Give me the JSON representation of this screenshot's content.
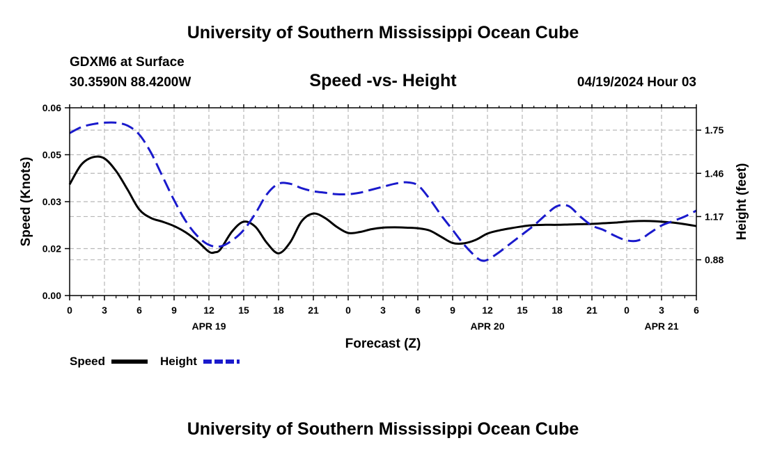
{
  "page": {
    "title": "University of Southern Mississippi Ocean Cube",
    "footer_title": "University of Southern Mississippi Ocean Cube"
  },
  "header": {
    "station": "GDXM6 at Surface",
    "location": "30.3590N  88.4200W",
    "datetime": "04/19/2024 Hour 03"
  },
  "colors": {
    "speed": "#000000",
    "height": "#1a1acc",
    "grid": "#b8b8b8"
  },
  "chart_data": {
    "type": "line",
    "title": "Speed -vs- Height",
    "xlabel": "Forecast (Z)",
    "ylabel": "Speed (Knots)",
    "y2label": "Height (feet)",
    "xlim": [
      0,
      54
    ],
    "ylim": [
      0,
      0.06
    ],
    "y2lim": [
      0.64,
      1.9
    ],
    "x_ticks": [
      0,
      3,
      6,
      9,
      12,
      15,
      18,
      21,
      24,
      27,
      30,
      33,
      36,
      39,
      42,
      45,
      48,
      51,
      54
    ],
    "x_tick_labels": [
      "0",
      "3",
      "6",
      "9",
      "12",
      "15",
      "18",
      "21",
      "0",
      "3",
      "6",
      "9",
      "12",
      "15",
      "18",
      "21",
      "0",
      "3",
      "6"
    ],
    "date_labels": [
      {
        "x": 12,
        "label": "APR 19"
      },
      {
        "x": 36,
        "label": "APR 20"
      },
      {
        "x": 51,
        "label": "APR 21"
      }
    ],
    "y_ticks": [
      0,
      0.015,
      0.03,
      0.045,
      0.06
    ],
    "y_tick_labels": [
      "0.00",
      "0.02",
      "0.03",
      "0.05",
      "0.06"
    ],
    "y2_ticks": [
      0.88,
      1.17,
      1.46,
      1.75
    ],
    "y2_tick_labels": [
      "0.88",
      "1.17",
      "1.46",
      "1.75"
    ],
    "grid": true,
    "legend_position": "bottom-left",
    "series": [
      {
        "name": "Speed",
        "axis": "left",
        "style": "solid",
        "x": [
          0,
          1,
          2,
          3,
          4,
          5,
          6,
          7,
          8,
          9,
          10,
          11,
          12,
          12.5,
          13,
          14,
          15,
          16,
          17,
          18,
          19,
          20,
          21,
          22,
          23,
          24,
          25,
          26,
          27,
          28,
          29,
          30,
          31,
          32,
          33,
          34,
          35,
          36,
          37,
          38,
          39,
          40,
          41,
          42,
          43,
          44,
          45,
          46,
          47,
          48,
          49,
          50,
          51,
          52,
          53,
          54
        ],
        "values": [
          0.0355,
          0.0418,
          0.0442,
          0.0438,
          0.0398,
          0.0338,
          0.0275,
          0.0248,
          0.0236,
          0.0222,
          0.0202,
          0.0174,
          0.014,
          0.0138,
          0.0148,
          0.0205,
          0.0236,
          0.022,
          0.0168,
          0.0135,
          0.017,
          0.0238,
          0.0262,
          0.0248,
          0.022,
          0.02,
          0.0203,
          0.0212,
          0.0217,
          0.0218,
          0.0217,
          0.0215,
          0.0208,
          0.0188,
          0.0168,
          0.0167,
          0.0178,
          0.0198,
          0.0208,
          0.0215,
          0.0221,
          0.0225,
          0.0226,
          0.0226,
          0.0227,
          0.0228,
          0.0229,
          0.0231,
          0.0233,
          0.0236,
          0.0238,
          0.0238,
          0.0236,
          0.0233,
          0.0228,
          0.0222
        ]
      },
      {
        "name": "Height",
        "axis": "right",
        "style": "dashed",
        "x": [
          0,
          1,
          2,
          3,
          4,
          5,
          6,
          7,
          8,
          9,
          10,
          11,
          12,
          13,
          14,
          15,
          16,
          17,
          18,
          19,
          20,
          21,
          22,
          23,
          24,
          25,
          26,
          27,
          28,
          29,
          30,
          31,
          32,
          33,
          34,
          35,
          35.5,
          36,
          37,
          38,
          39,
          40,
          41,
          42,
          43,
          44,
          45,
          46,
          47,
          48,
          49,
          50,
          51,
          52,
          53,
          54
        ],
        "values": [
          1.73,
          1.77,
          1.79,
          1.8,
          1.8,
          1.78,
          1.72,
          1.6,
          1.44,
          1.28,
          1.14,
          1.04,
          0.98,
          0.97,
          1.01,
          1.08,
          1.19,
          1.32,
          1.39,
          1.39,
          1.36,
          1.34,
          1.33,
          1.32,
          1.32,
          1.33,
          1.35,
          1.37,
          1.39,
          1.4,
          1.38,
          1.29,
          1.18,
          1.08,
          0.98,
          0.9,
          0.875,
          0.88,
          0.93,
          0.99,
          1.05,
          1.11,
          1.18,
          1.24,
          1.24,
          1.17,
          1.11,
          1.08,
          1.04,
          1.01,
          1.01,
          1.06,
          1.11,
          1.14,
          1.17,
          1.21
        ]
      }
    ]
  }
}
